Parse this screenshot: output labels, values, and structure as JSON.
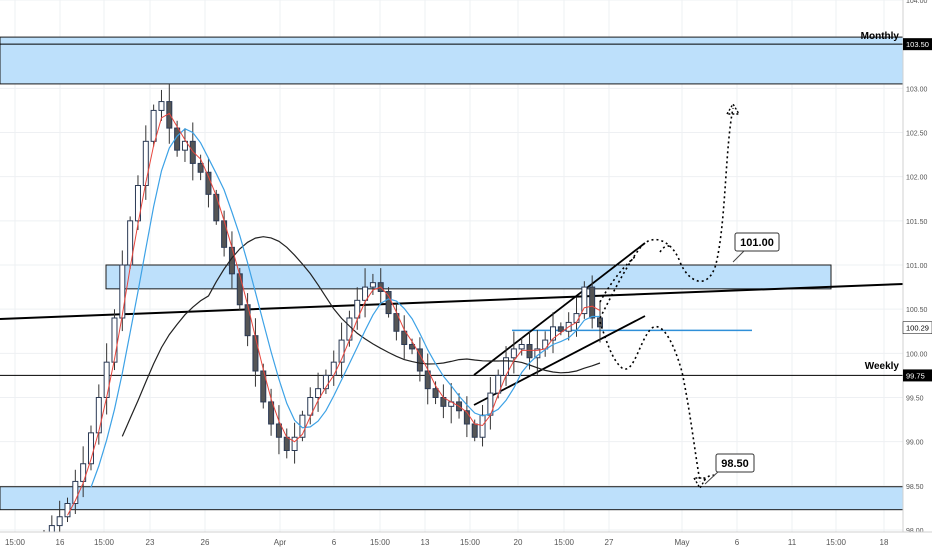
{
  "chart_data": {
    "type": "candlestick",
    "title": "",
    "xlabel": "",
    "ylabel": "",
    "ylim": [
      98.0,
      104.0
    ],
    "grid": true,
    "x_ticks": [
      "15:00",
      "16",
      "15:00",
      "23",
      "26",
      "Apr",
      "6",
      "15:00",
      "13",
      "15:00",
      "20",
      "15:00",
      "27",
      "May",
      "6",
      "11",
      "15:00",
      "18"
    ],
    "y_ticks": [
      "104.00",
      "103.50",
      "103.00",
      "102.50",
      "102.00",
      "101.50",
      "101.00",
      "100.50",
      "100.00",
      "99.50",
      "99.00",
      "98.50",
      "98.00"
    ],
    "price_labels": [
      {
        "value": "103.50",
        "bg": "#000000"
      },
      {
        "value": "100.29",
        "bg": "#ffffff"
      },
      {
        "value": "99.75",
        "bg": "#000000"
      }
    ],
    "zones": [
      {
        "from": 103.05,
        "to": 103.58,
        "label": "Monthly"
      },
      {
        "from": 100.73,
        "to": 101.0,
        "label": ""
      },
      {
        "from": 98.23,
        "to": 98.49,
        "label": ""
      }
    ],
    "horizontal_lines": [
      {
        "value": 103.5,
        "label": "Monthly",
        "color": "#000000"
      },
      {
        "value": 99.75,
        "label": "Weekly",
        "color": "#000000"
      },
      {
        "value": 100.26,
        "label": "",
        "color": "#2f8fd8"
      }
    ],
    "callouts": [
      {
        "text": "101.00",
        "value": 101.0
      },
      {
        "text": "98.50",
        "value": 98.5
      }
    ],
    "close_series": [
      97.95,
      98.05,
      98.15,
      98.3,
      98.55,
      98.75,
      99.1,
      99.5,
      99.9,
      100.4,
      101.0,
      101.5,
      101.9,
      102.4,
      102.75,
      102.85,
      102.55,
      102.3,
      102.4,
      102.15,
      102.05,
      101.8,
      101.5,
      101.2,
      100.9,
      100.55,
      100.2,
      99.8,
      99.45,
      99.2,
      99.05,
      98.9,
      99.05,
      99.3,
      99.5,
      99.6,
      99.75,
      99.9,
      100.15,
      100.4,
      100.6,
      100.75,
      100.8,
      100.7,
      100.45,
      100.25,
      100.1,
      100.05,
      99.8,
      99.6,
      99.5,
      99.4,
      99.45,
      99.35,
      99.2,
      99.05,
      99.3,
      99.55,
      99.75,
      99.95,
      100.05,
      100.1,
      99.95,
      100.05,
      100.15,
      100.3,
      100.25,
      100.35,
      100.45,
      100.75,
      100.4,
      100.3
    ],
    "colors": {
      "up": "#2f4f8f",
      "down": "#e07070",
      "zone": "#bde0fb",
      "zone_border": "#1a1a1a",
      "ma_fast": "#e8453c",
      "ma_mid": "#3da2e6",
      "ma_slow": "#222222",
      "line_blue": "#2f8fd8"
    }
  }
}
